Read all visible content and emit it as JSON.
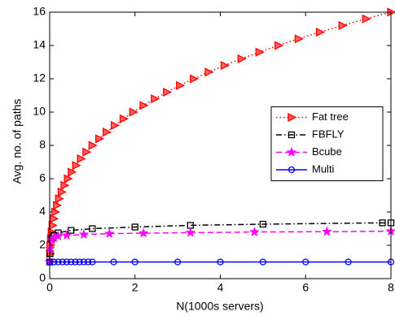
{
  "chart_data": {
    "type": "line",
    "xlabel": "N(1000s servers)",
    "ylabel": "Avg. no. of paths",
    "xlim": [
      0,
      8
    ],
    "ylim": [
      0,
      16
    ],
    "xticks": [
      0,
      2,
      4,
      6,
      8
    ],
    "yticks": [
      0,
      2,
      4,
      6,
      8,
      10,
      12,
      14,
      16
    ],
    "legend": "east",
    "series": [
      {
        "name": "Fat tree",
        "color": "#ff0000",
        "dash": "dotted",
        "marker": "triangle-right",
        "x": [
          0.007,
          0.015,
          0.027,
          0.043,
          0.064,
          0.091,
          0.125,
          0.166,
          0.216,
          0.275,
          0.343,
          0.422,
          0.512,
          0.614,
          0.729,
          0.857,
          1.0,
          1.158,
          1.331,
          1.521,
          1.728,
          1.953,
          2.197,
          2.46,
          2.744,
          3.05,
          3.375,
          3.724,
          4.096,
          4.492,
          4.913,
          5.36,
          5.832,
          6.332,
          6.859,
          7.415,
          8.0
        ],
        "values": [
          1.5,
          2,
          2.4,
          2.8,
          3.2,
          3.6,
          4,
          4.4,
          4.8,
          5.2,
          5.6,
          6,
          6.4,
          6.8,
          7.2,
          7.6,
          8,
          8.4,
          8.8,
          9.2,
          9.6,
          10,
          10.4,
          10.8,
          11.2,
          11.6,
          12,
          12.4,
          12.8,
          13.2,
          13.6,
          14,
          14.4,
          14.8,
          15.2,
          15.6,
          16
        ]
      },
      {
        "name": "FBFLY",
        "color": "#000000",
        "dash": "dashdot",
        "marker": "square",
        "x": [
          0.0,
          0.01,
          0.05,
          0.1,
          0.2,
          0.5,
          1.0,
          2.0,
          3.3,
          5.0,
          7.8,
          8.0
        ],
        "values": [
          1.0,
          1.5,
          2.4,
          2.6,
          2.75,
          2.9,
          3.0,
          3.1,
          3.2,
          3.27,
          3.35,
          3.35
        ]
      },
      {
        "name": "Bcube",
        "color": "#ff00ff",
        "dash": "dashed",
        "marker": "star",
        "x": [
          0.0,
          0.01,
          0.05,
          0.1,
          0.2,
          0.4,
          0.8,
          1.4,
          2.2,
          3.3,
          4.8,
          6.5,
          8.0
        ],
        "values": [
          1.0,
          1.8,
          2.3,
          2.45,
          2.55,
          2.6,
          2.65,
          2.7,
          2.73,
          2.76,
          2.8,
          2.82,
          2.85
        ]
      },
      {
        "name": "Multi",
        "color": "#0000ff",
        "dash": "solid",
        "marker": "circle",
        "x": [
          0,
          0.1,
          0.2,
          0.3,
          0.4,
          0.5,
          0.6,
          0.7,
          0.8,
          0.9,
          1.0,
          1.5,
          2,
          3,
          4,
          5,
          6,
          7,
          8
        ],
        "values": [
          1,
          1,
          1,
          1,
          1,
          1,
          1,
          1,
          1,
          1,
          1,
          1,
          1,
          1,
          1,
          1,
          1,
          1,
          1
        ]
      }
    ]
  }
}
